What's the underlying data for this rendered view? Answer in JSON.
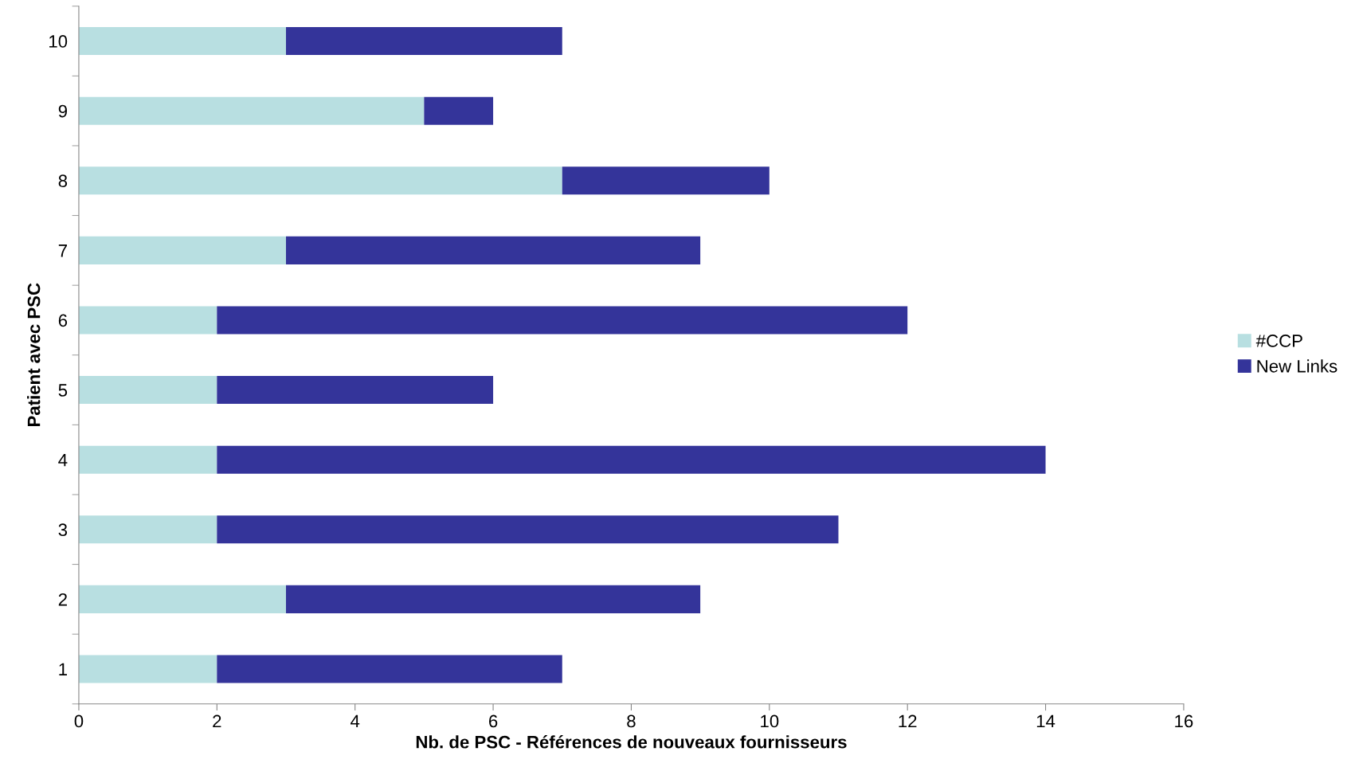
{
  "chart_data": {
    "type": "bar",
    "orientation": "horizontal",
    "stacked": true,
    "xlabel": "Nb. de PSC - Références de nouveaux fournisseurs",
    "ylabel": "Patient avec PSC",
    "categories": [
      "10",
      "9",
      "8",
      "7",
      "6",
      "5",
      "4",
      "3",
      "2",
      "1"
    ],
    "series": [
      {
        "name": "#CCP",
        "color": "#b8dfe1",
        "values": [
          3,
          5,
          7,
          3,
          2,
          2,
          2,
          2,
          3,
          2
        ]
      },
      {
        "name": "New Links",
        "color": "#34349a",
        "values": [
          4,
          1,
          3,
          6,
          10,
          4,
          12,
          9,
          6,
          5
        ]
      }
    ],
    "xlim": [
      0,
      16
    ],
    "xticks": [
      0,
      2,
      4,
      6,
      8,
      10,
      12,
      14,
      16
    ],
    "grid": false,
    "legend": "right"
  }
}
